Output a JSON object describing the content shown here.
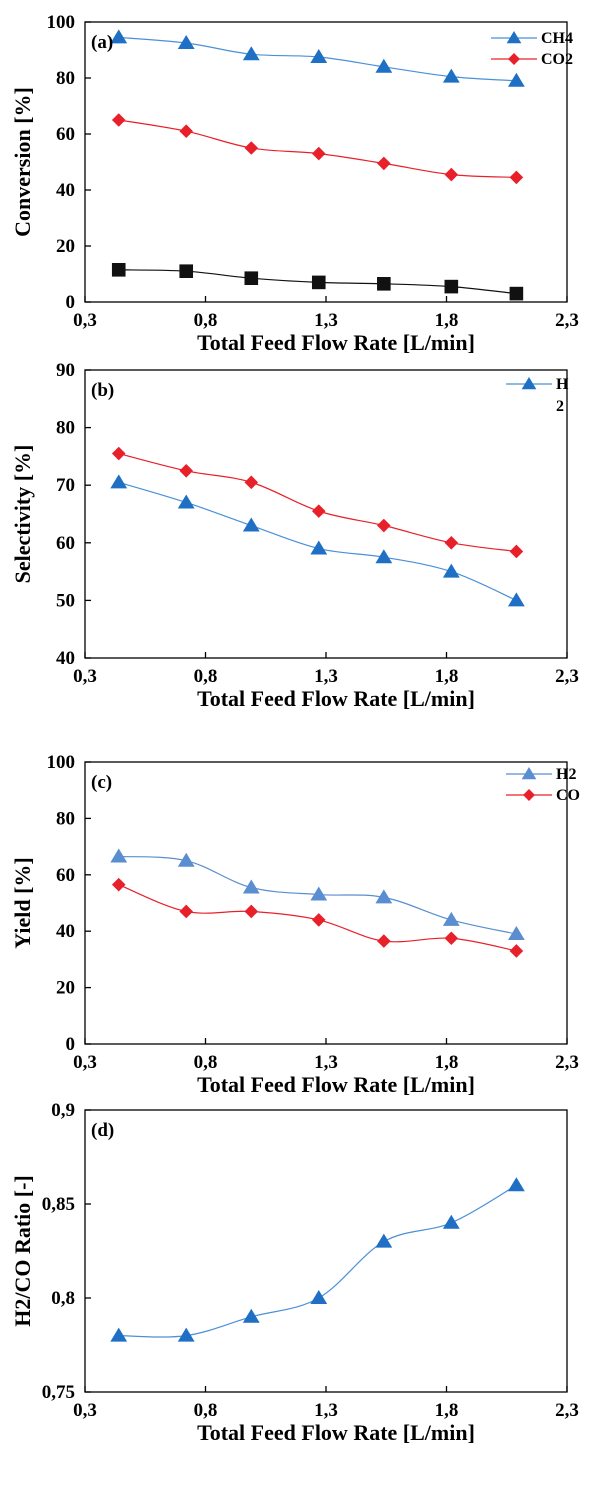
{
  "chart_data": [
    {
      "type": "line",
      "panel_label": "(a)",
      "xlabel": "Total Feed Flow Rate [L/min]",
      "ylabel": "Conversion [%]",
      "xlim": [
        0.3,
        2.3
      ],
      "ylim": [
        0,
        100
      ],
      "xticks": [
        "0,3",
        "0,8",
        "1,3",
        "1,8",
        "2,3"
      ],
      "yticks": [
        "0",
        "20",
        "40",
        "60",
        "80",
        "100"
      ],
      "grid": false,
      "legend_position": "top-right",
      "series": [
        {
          "name": "CH4",
          "color": "#1f6fc4",
          "line": "#4a90d9",
          "marker": "triangle",
          "x": [
            0.44,
            0.72,
            0.99,
            1.27,
            1.54,
            1.82,
            2.09
          ],
          "y": [
            94.5,
            92.5,
            88.5,
            87.5,
            84,
            80.5,
            79
          ]
        },
        {
          "name": "CO2",
          "color": "#e8202a",
          "line": "#e8202a",
          "marker": "diamond",
          "x": [
            0.44,
            0.72,
            0.99,
            1.27,
            1.54,
            1.82,
            2.09
          ],
          "y": [
            65,
            61,
            55,
            53,
            49.5,
            45.5,
            44.5
          ]
        },
        {
          "color": "#111111",
          "line": "#111111",
          "marker": "square",
          "x": [
            0.44,
            0.72,
            0.99,
            1.27,
            1.54,
            1.82,
            2.09
          ],
          "y": [
            11.5,
            11,
            8.5,
            7,
            6.5,
            5.5,
            3
          ]
        }
      ]
    },
    {
      "type": "line",
      "panel_label": "(b)",
      "xlabel": "Total Feed Flow Rate [L/min]",
      "ylabel": "Selectivity [%]",
      "xlim": [
        0.3,
        2.3
      ],
      "ylim": [
        40,
        90
      ],
      "xticks": [
        "0,3",
        "0,8",
        "1,3",
        "1,8",
        "2,3"
      ],
      "yticks": [
        "40",
        "50",
        "60",
        "70",
        "80",
        "90"
      ],
      "grid": false,
      "legend_position": "top-right",
      "series": [
        {
          "name": "H\n2",
          "color": "#1f6fc4",
          "line": "#4a90d9",
          "marker": "triangle",
          "x": [
            0.44,
            0.72,
            0.99,
            1.27,
            1.54,
            1.82,
            2.09
          ],
          "y": [
            70.5,
            67,
            63,
            59,
            57.5,
            55,
            50
          ]
        },
        {
          "color": "#e8202a",
          "line": "#e8202a",
          "marker": "diamond",
          "x": [
            0.44,
            0.72,
            0.99,
            1.27,
            1.54,
            1.82,
            2.09
          ],
          "y": [
            75.5,
            72.5,
            70.5,
            65.5,
            63,
            60,
            58.5
          ]
        }
      ]
    },
    {
      "type": "line",
      "panel_label": "(c)",
      "xlabel": "Total Feed Flow Rate [L/min]",
      "ylabel": "Yield [%]",
      "xlim": [
        0.3,
        2.3
      ],
      "ylim": [
        0,
        100
      ],
      "xticks": [
        "0,3",
        "0,8",
        "1,3",
        "1,8",
        "2,3"
      ],
      "yticks": [
        "0",
        "20",
        "40",
        "60",
        "80",
        "100"
      ],
      "grid": false,
      "legend_position": "top-right",
      "series": [
        {
          "name": "H2",
          "color": "#5a8ed0",
          "line": "#5a8ed0",
          "marker": "triangle",
          "x": [
            0.44,
            0.72,
            0.99,
            1.27,
            1.54,
            1.82,
            2.09
          ],
          "y": [
            66.5,
            65,
            55.5,
            53,
            52,
            44,
            39
          ]
        },
        {
          "name": "CO",
          "color": "#e8202a",
          "line": "#e8202a",
          "marker": "diamond",
          "x": [
            0.44,
            0.72,
            0.99,
            1.27,
            1.54,
            1.82,
            2.09
          ],
          "y": [
            56.5,
            47,
            47,
            44,
            36.5,
            37.5,
            33
          ]
        }
      ]
    },
    {
      "type": "line",
      "panel_label": "(d)",
      "xlabel": "Total Feed Flow Rate [L/min]",
      "ylabel": "H2/CO Ratio [-]",
      "xlim": [
        0.3,
        2.3
      ],
      "ylim": [
        0.75,
        0.9
      ],
      "xticks": [
        "0,3",
        "0,8",
        "1,3",
        "1,8",
        "2,3"
      ],
      "yticks": [
        "0,75",
        "0,8",
        "0,85",
        "0,9"
      ],
      "grid": false,
      "series": [
        {
          "color": "#1f6fc4",
          "line": "#4a90d9",
          "marker": "triangle",
          "x": [
            0.44,
            0.72,
            0.99,
            1.27,
            1.54,
            1.82,
            2.09
          ],
          "y": [
            0.78,
            0.78,
            0.79,
            0.8,
            0.83,
            0.84,
            0.86
          ]
        }
      ]
    }
  ]
}
